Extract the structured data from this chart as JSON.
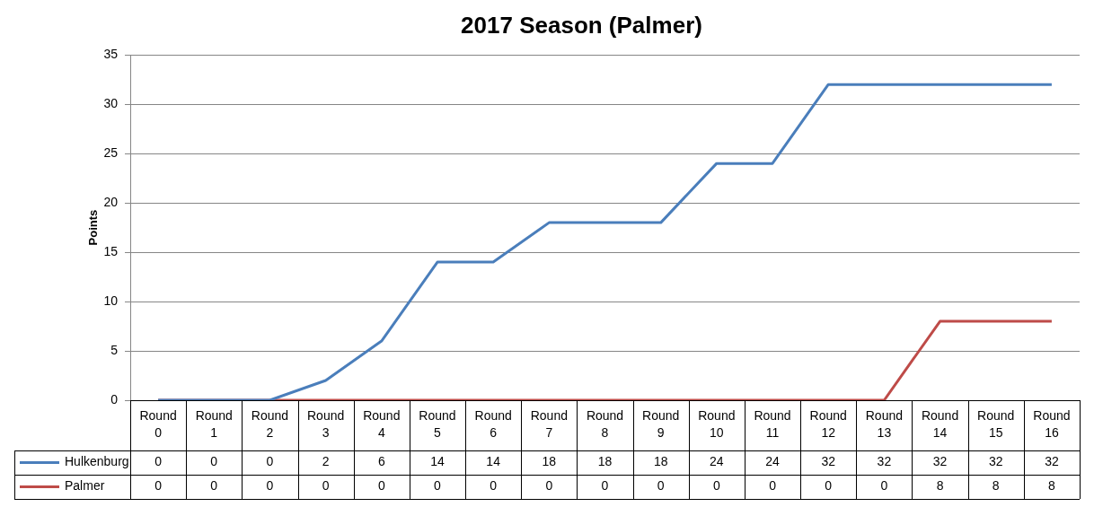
{
  "chart_data": {
    "type": "line",
    "title": "2017 Season (Palmer)",
    "ylabel": "Points",
    "categories": [
      "Round 0",
      "Round 1",
      "Round 2",
      "Round 3",
      "Round 4",
      "Round 5",
      "Round 6",
      "Round 7",
      "Round 8",
      "Round 9",
      "Round 10",
      "Round 11",
      "Round 12",
      "Round 13",
      "Round 14",
      "Round 15",
      "Round 16"
    ],
    "series": [
      {
        "name": "Hulkenburg",
        "color": "#4a7ebb",
        "values": [
          0,
          0,
          0,
          2,
          6,
          14,
          14,
          18,
          18,
          18,
          24,
          24,
          32,
          32,
          32,
          32,
          32
        ]
      },
      {
        "name": "Palmer",
        "color": "#be4b48",
        "values": [
          0,
          0,
          0,
          0,
          0,
          0,
          0,
          0,
          0,
          0,
          0,
          0,
          0,
          0,
          8,
          8,
          8
        ]
      }
    ],
    "ylim": [
      0,
      35
    ],
    "yticks": [
      0,
      5,
      10,
      15,
      20,
      25,
      30,
      35
    ],
    "grid": "y",
    "legend": "bottom",
    "data_labels": true,
    "marker": "none",
    "line_style": "solid"
  }
}
